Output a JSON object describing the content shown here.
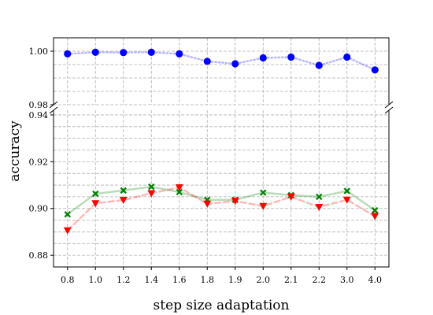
{
  "chart_data": {
    "type": "line",
    "xlabel": "step size adaptation",
    "ylabel": "accuracy",
    "categories": [
      "0.8",
      "1.0",
      "1.2",
      "1.4",
      "1.6",
      "1.8",
      "1.9",
      "2.0",
      "2.1",
      "2.2",
      "3.0",
      "4.0"
    ],
    "broken_axis": true,
    "top_panel": {
      "ylim": [
        0.98,
        1.005
      ],
      "yticks": [
        "0.98",
        "1.00"
      ],
      "series": [
        {
          "color": "#0000ff",
          "marker": "circle",
          "line_style": "dotted",
          "values": [
            0.999,
            0.9996,
            0.9995,
            0.9996,
            0.999,
            0.9962,
            0.9953,
            0.9975,
            0.9978,
            0.9947,
            0.9978,
            0.993
          ]
        }
      ]
    },
    "bottom_panel": {
      "ylim": [
        0.875,
        0.942
      ],
      "yticks": [
        "0.88",
        "0.90",
        "0.92",
        "0.94"
      ],
      "series": [
        {
          "color": "#008000",
          "marker": "x",
          "line_style": "solid",
          "values": [
            0.8975,
            0.9063,
            0.9077,
            0.9093,
            0.907,
            0.9037,
            0.9037,
            0.9068,
            0.9057,
            0.905,
            0.9075,
            0.8992
          ]
        },
        {
          "color": "#ff0000",
          "marker": "triangle-down",
          "line_style": "dashed",
          "values": [
            0.8906,
            0.9022,
            0.9036,
            0.9065,
            0.909,
            0.902,
            0.9032,
            0.901,
            0.905,
            0.9006,
            0.9037,
            0.8967
          ]
        }
      ]
    },
    "grid": true
  }
}
